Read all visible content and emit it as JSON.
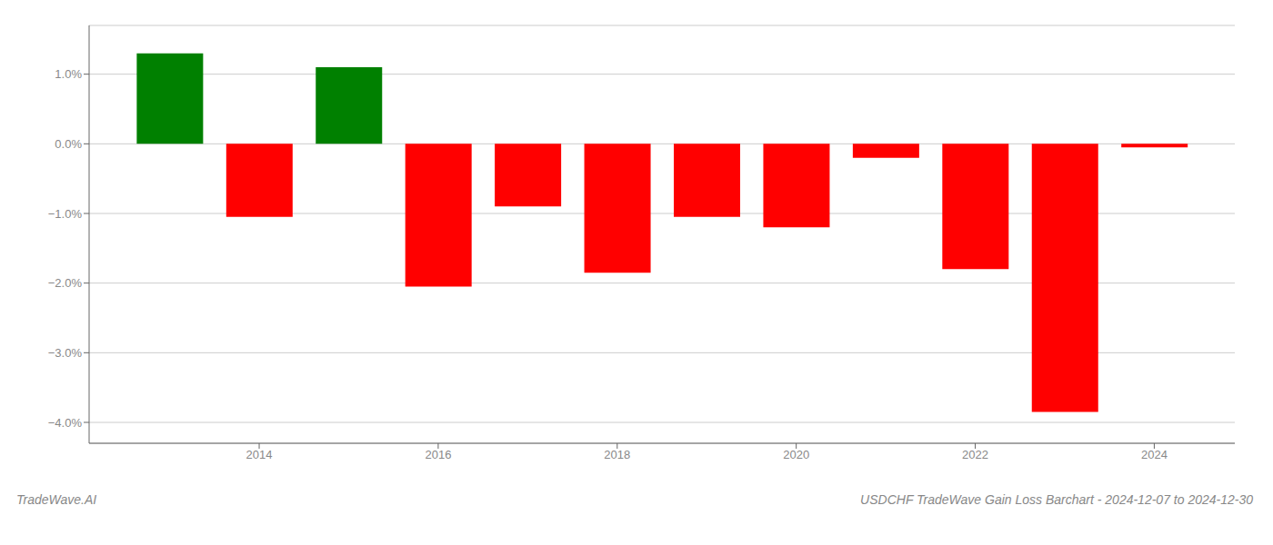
{
  "chart_data": {
    "type": "bar",
    "x": [
      2013,
      2014,
      2015,
      2016,
      2017,
      2018,
      2019,
      2020,
      2021,
      2022,
      2023,
      2024
    ],
    "values": [
      1.3,
      -1.05,
      1.1,
      -2.05,
      -0.9,
      -1.85,
      -1.05,
      -1.2,
      -0.2,
      -1.8,
      -3.85,
      -0.05
    ],
    "colors": [
      "#008000",
      "#ff0000",
      "#008000",
      "#ff0000",
      "#ff0000",
      "#ff0000",
      "#ff0000",
      "#ff0000",
      "#ff0000",
      "#ff0000",
      "#ff0000",
      "#ff0000"
    ],
    "xlim": [
      2012.1,
      2024.9
    ],
    "xticks": [
      2014,
      2016,
      2018,
      2020,
      2022,
      2024
    ],
    "ylim": [
      -4.3,
      1.7
    ],
    "yticks": [
      {
        "value": 1.0,
        "label": "1.0%"
      },
      {
        "value": 0.0,
        "label": "0.0%"
      },
      {
        "value": -1.0,
        "label": "−1.0%"
      },
      {
        "value": -2.0,
        "label": "−2.0%"
      },
      {
        "value": -3.0,
        "label": "−3.0%"
      },
      {
        "value": -4.0,
        "label": "−4.0%"
      }
    ],
    "grid": true,
    "annotations": [
      "TradeWave.AI",
      "USDCHF TradeWave Gain Loss Barchart - 2024-12-07 to 2024-12-30"
    ]
  }
}
